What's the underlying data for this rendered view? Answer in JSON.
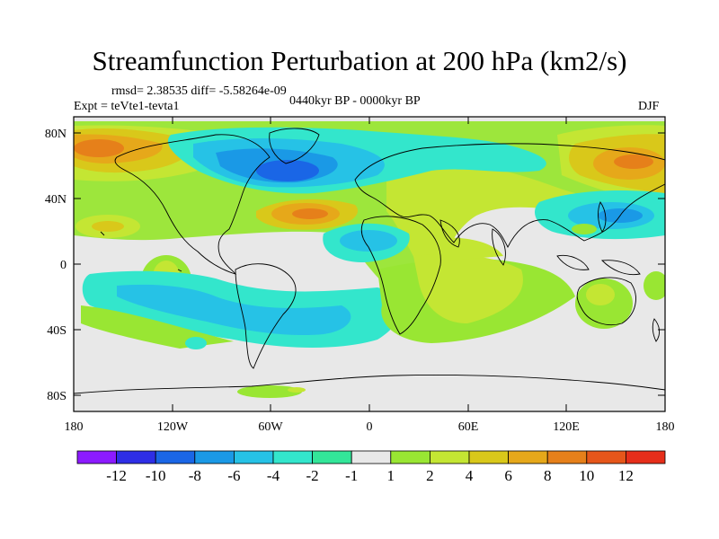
{
  "header": {
    "title": "Streamfunction Perturbation at 200 hPa (km2/s)",
    "stats": "rmsd= 2.38535 diff= -5.58264e-09",
    "experiment": "Expt = teVte1-tevta1",
    "period": "0440kyr BP - 0000kyr BP",
    "season": "DJF"
  },
  "axes": {
    "lat_labels": [
      "80N",
      "40N",
      "0",
      "40S",
      "80S"
    ],
    "lon_labels": [
      "180",
      "120W",
      "60W",
      "0",
      "60E",
      "120E",
      "180"
    ]
  },
  "colorbar": {
    "colors": [
      "#8c1aff",
      "#2e2ee6",
      "#1a66e6",
      "#1a99e6",
      "#26c2e6",
      "#33e6cc",
      "#33e699",
      "#e8e8e8",
      "#99e633",
      "#c4e633",
      "#d9c81a",
      "#e6a81a",
      "#e6801a",
      "#e6561a",
      "#e62e1a"
    ],
    "labels": [
      "-12",
      "-10",
      "-8",
      "-6",
      "-4",
      "-2",
      "-1",
      "1",
      "2",
      "4",
      "6",
      "8",
      "10",
      "12"
    ]
  },
  "palette": {
    "neutral": "#e8e8e8",
    "frame": "#000000"
  }
}
